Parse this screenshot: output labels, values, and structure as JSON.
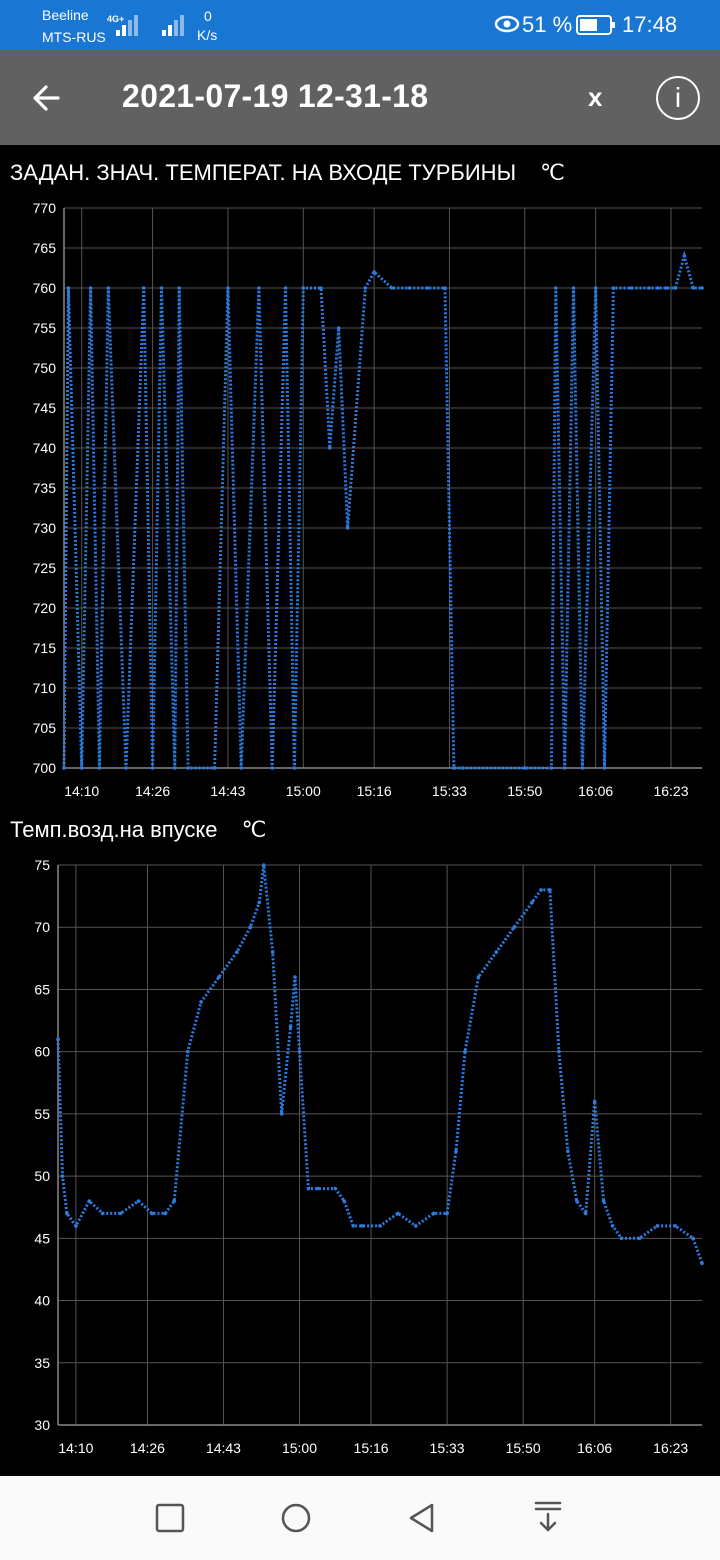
{
  "status_bar": {
    "carrier1": "Beeline",
    "carrier2": "MTS-RUS",
    "network": "4G+",
    "speed_value": "0",
    "speed_unit": "K/s",
    "battery": "51 %",
    "time": "17:48"
  },
  "app_bar": {
    "title": "2021-07-19 12-31-18",
    "close_label": "x",
    "info_label": "i"
  },
  "colors": {
    "status_bar": "#1976d2",
    "app_bar": "#616161",
    "plot_line": "#2b7be0",
    "background": "#000000",
    "nav_bar": "#fafafa"
  },
  "chart_data": [
    {
      "type": "line",
      "title": "ЗАДАН. ЗНАЧ. ТЕМПЕРАТ. НА ВХОДЕ ТУРБИНЫ",
      "unit": "℃",
      "ylim": [
        700,
        770
      ],
      "yticks": [
        700,
        705,
        710,
        715,
        720,
        725,
        730,
        735,
        740,
        745,
        750,
        755,
        760,
        765,
        770
      ],
      "xticks": [
        "14:10",
        "14:26",
        "14:43",
        "15:00",
        "15:16",
        "15:33",
        "15:50",
        "16:06",
        "16:23"
      ],
      "grid": true,
      "series": [
        {
          "x": [
            "14:06",
            "14:07",
            "14:10",
            "14:12",
            "14:14",
            "14:16",
            "14:20",
            "14:24",
            "14:26",
            "14:28",
            "14:31",
            "14:32",
            "14:34",
            "14:40",
            "14:43",
            "14:46",
            "14:50",
            "14:53",
            "14:56",
            "14:58",
            "15:00",
            "15:04",
            "15:06",
            "15:08",
            "15:10",
            "15:14",
            "15:16",
            "15:20",
            "15:24",
            "15:28",
            "15:32",
            "15:34",
            "15:36",
            "15:50",
            "15:56",
            "15:57",
            "15:59",
            "16:01",
            "16:03",
            "16:06",
            "16:08",
            "16:10",
            "16:14",
            "16:18",
            "16:20",
            "16:22",
            "16:24",
            "16:26",
            "16:28",
            "16:30"
          ],
          "values": [
            700,
            760,
            700,
            760,
            700,
            760,
            700,
            760,
            700,
            760,
            700,
            760,
            700,
            700,
            760,
            700,
            760,
            700,
            760,
            700,
            760,
            760,
            740,
            755,
            730,
            760,
            762,
            760,
            760,
            760,
            760,
            700,
            700,
            700,
            700,
            760,
            700,
            760,
            700,
            760,
            700,
            760,
            760,
            760,
            760,
            760,
            760,
            764,
            760,
            760
          ]
        }
      ]
    },
    {
      "type": "line",
      "title": "Темп.возд.на впуске",
      "unit": "℃",
      "ylim": [
        30,
        75
      ],
      "yticks": [
        30,
        35,
        40,
        45,
        50,
        55,
        60,
        65,
        70,
        75
      ],
      "xticks": [
        "14:10",
        "14:26",
        "14:43",
        "15:00",
        "15:16",
        "15:33",
        "15:50",
        "16:06",
        "16:23"
      ],
      "grid": true,
      "series": [
        {
          "x": [
            "14:06",
            "14:07",
            "14:08",
            "14:10",
            "14:13",
            "14:16",
            "14:20",
            "14:24",
            "14:27",
            "14:30",
            "14:32",
            "14:35",
            "14:38",
            "14:42",
            "14:46",
            "14:49",
            "14:51",
            "14:52",
            "14:54",
            "14:56",
            "14:58",
            "14:59",
            "15:00",
            "15:02",
            "15:04",
            "15:08",
            "15:10",
            "15:12",
            "15:14",
            "15:18",
            "15:22",
            "15:26",
            "15:30",
            "15:33",
            "15:35",
            "15:37",
            "15:40",
            "15:44",
            "15:48",
            "15:52",
            "15:54",
            "15:56",
            "15:58",
            "16:00",
            "16:02",
            "16:04",
            "16:06",
            "16:08",
            "16:10",
            "16:12",
            "16:16",
            "16:20",
            "16:24",
            "16:28",
            "16:30"
          ],
          "values": [
            61,
            50,
            47,
            46,
            48,
            47,
            47,
            48,
            47,
            47,
            48,
            60,
            64,
            66,
            68,
            70,
            72,
            75,
            68,
            55,
            62,
            66,
            60,
            49,
            49,
            49,
            48,
            46,
            46,
            46,
            47,
            46,
            47,
            47,
            52,
            60,
            66,
            68,
            70,
            72,
            73,
            73,
            60,
            52,
            48,
            47,
            56,
            48,
            46,
            45,
            45,
            46,
            46,
            45,
            43
          ]
        }
      ]
    }
  ]
}
